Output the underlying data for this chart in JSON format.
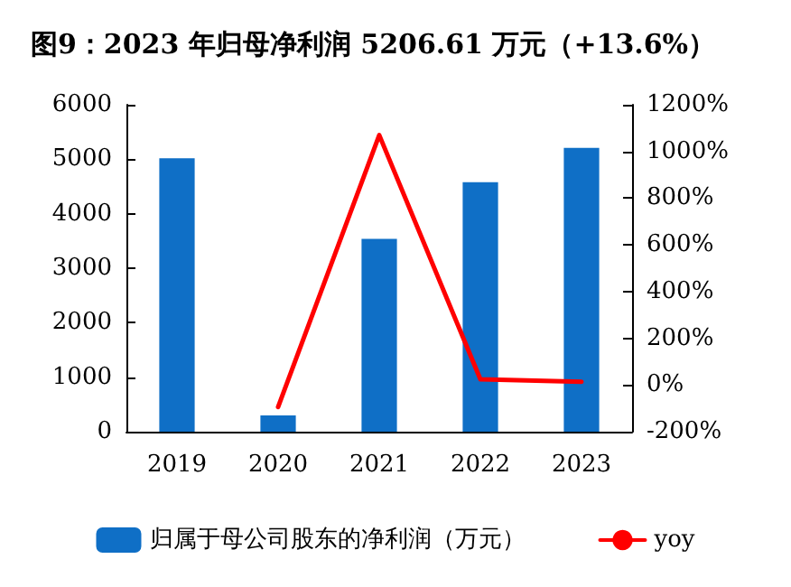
{
  "chart_data": {
    "type": "bar",
    "title": "图9：2023 年归母净利润 5206.61 万元（+13.6%）",
    "categories": [
      "2019",
      "2020",
      "2021",
      "2022",
      "2023"
    ],
    "series": [
      {
        "name": "归属于母公司股东的净利润（万元）",
        "color": "#0f6fc6",
        "values": [
          5020,
          300,
          3540,
          4580,
          5206.61
        ]
      },
      {
        "name": "yoy",
        "type": "line",
        "axis": "y2",
        "color": "#ff0000",
        "values": [
          null,
          -94,
          1070,
          24,
          13.6
        ]
      }
    ],
    "ylim": [
      0,
      6000
    ],
    "yticks": [
      0,
      1000,
      2000,
      3000,
      4000,
      5000,
      6000
    ],
    "y2lim": [
      -200,
      1200
    ],
    "y2ticks": [
      {
        "value": -200,
        "label": "-200%"
      },
      {
        "value": 0,
        "label": "0%"
      },
      {
        "value": 200,
        "label": "200%"
      },
      {
        "value": 400,
        "label": "400%"
      },
      {
        "value": 600,
        "label": "600%"
      },
      {
        "value": 800,
        "label": "800%"
      },
      {
        "value": 1000,
        "label": "1000%"
      },
      {
        "value": 1200,
        "label": "1200%"
      }
    ],
    "grid": false,
    "legend": "bottom",
    "marker": "none",
    "line_style": "solid"
  }
}
